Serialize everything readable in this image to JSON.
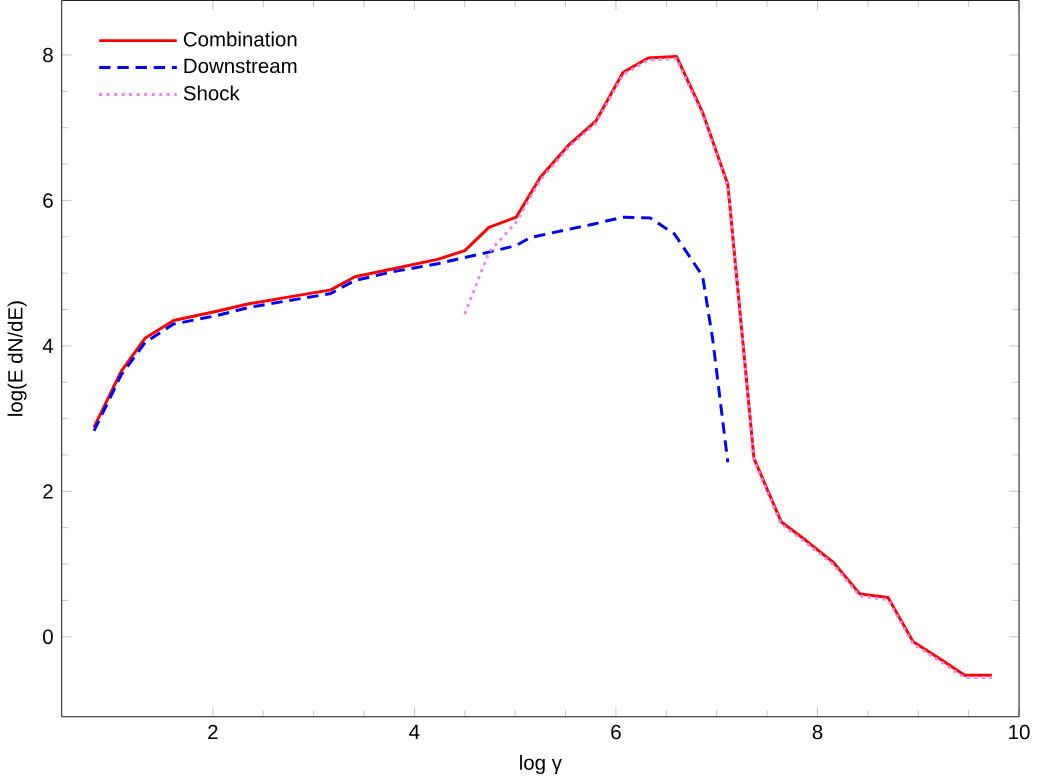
{
  "chart_data": {
    "type": "line",
    "xlabel": "log γ",
    "ylabel": "log(E dN/dE)",
    "xlim": [
      0.5,
      10
    ],
    "ylim": [
      -1.1,
      8.75
    ],
    "xticks": [
      2,
      4,
      6,
      8,
      10
    ],
    "yticks": [
      0,
      2,
      4,
      6,
      8
    ],
    "legend": "top left",
    "grid": false,
    "marker": "none",
    "series": [
      {
        "name": "Combination",
        "color": "#ff0000",
        "line_style": "solid",
        "x": [
          0.82,
          1.09,
          1.33,
          1.61,
          2.05,
          2.36,
          2.7,
          3.17,
          3.41,
          3.79,
          4.23,
          4.5,
          4.74,
          5.01,
          5.25,
          5.53,
          5.8,
          6.07,
          6.32,
          6.6,
          6.86,
          7.11,
          7.37,
          7.64,
          7.88,
          8.16,
          8.42,
          8.7,
          8.95,
          9.21,
          9.46,
          9.73
        ],
        "values": [
          2.88,
          3.65,
          4.11,
          4.35,
          4.48,
          4.58,
          4.66,
          4.77,
          4.95,
          5.06,
          5.19,
          5.31,
          5.63,
          5.77,
          6.32,
          6.76,
          7.09,
          7.76,
          7.96,
          7.98,
          7.21,
          6.22,
          2.45,
          1.58,
          1.33,
          1.02,
          0.59,
          0.54,
          -0.07,
          -0.3,
          -0.53,
          -0.53
        ]
      },
      {
        "name": "Downstream",
        "color": "#0000ff",
        "line_style": "dashed",
        "x": [
          0.82,
          1.09,
          1.33,
          1.61,
          2.05,
          2.36,
          2.7,
          3.17,
          3.41,
          3.79,
          4.23,
          4.74,
          5.01,
          5.15,
          5.76,
          6.07,
          6.34,
          6.58,
          6.86,
          6.96,
          7.11
        ],
        "values": [
          2.83,
          3.6,
          4.05,
          4.3,
          4.42,
          4.53,
          4.61,
          4.72,
          4.9,
          5.02,
          5.13,
          5.29,
          5.38,
          5.49,
          5.67,
          5.77,
          5.76,
          5.54,
          4.96,
          4.09,
          2.4
        ]
      },
      {
        "name": "Shock",
        "color": "#ee82ee",
        "line_style": "dotted",
        "x": [
          4.5,
          4.74,
          5.01,
          5.25,
          5.53,
          5.8,
          6.07,
          6.32,
          6.6,
          6.86,
          7.11,
          7.37,
          7.64,
          7.88,
          8.16,
          8.42,
          8.7,
          8.95,
          9.21,
          9.46,
          9.73
        ],
        "values": [
          4.44,
          5.29,
          5.7,
          6.28,
          6.73,
          7.06,
          7.73,
          7.93,
          7.95,
          7.18,
          6.19,
          2.42,
          1.55,
          1.3,
          0.99,
          0.56,
          0.51,
          -0.1,
          -0.33,
          -0.56,
          -0.56
        ]
      }
    ]
  }
}
